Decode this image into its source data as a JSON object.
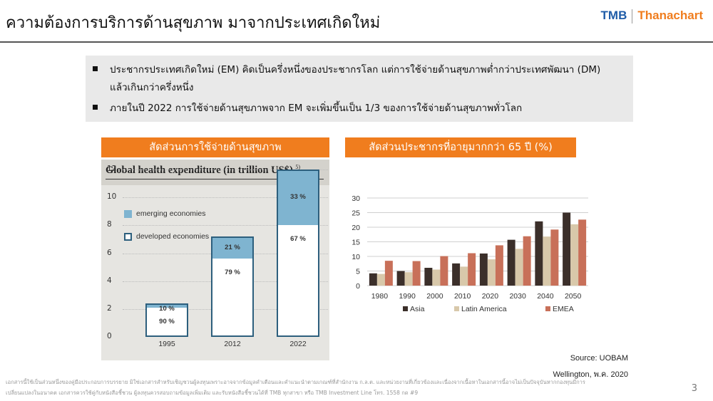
{
  "header": {
    "title": "ความต้องการบริการด้านสุขภาพ มาจากประเทศเกิดใหม่",
    "logo_tmb": "TMB",
    "logo_thanachart": "Thanachart"
  },
  "bullets": [
    {
      "line1": "ประชากรประเทศเกิดใหม่ (EM) คิดเป็นครึ่งหนึ่งของประชากรโลก แต่การใช้จ่ายด้านสุขภาพต่ำกว่าประเทศพัฒนา (DM)",
      "line2": "แล้วเกินกว่าครึ่งหนึ่ง"
    },
    {
      "line1": "ภายในปี 2022 การใช้จ่ายด้านสุขภาพจาก EM จะเพิ่มขึ้นเป็น 1/3 ของการใช้จ่ายด้านสุขภาพทั่วโลก"
    }
  ],
  "panel_left": {
    "bar_title": "สัดส่วนการใช้จ่ายด้านสุขภาพ",
    "chart_title": "Global health expenditure (in trillion US$)",
    "footnote": "5)"
  },
  "panel_right": {
    "bar_title": "สัดส่วนประชากรที่อายุมากกว่า 65 ปี (%)"
  },
  "chart_data": [
    {
      "type": "bar",
      "title": "Global health expenditure (in trillion US$)",
      "categories": [
        "1995",
        "2012",
        "2022"
      ],
      "totals": [
        2.4,
        7.2,
        12.0
      ],
      "series": [
        {
          "name": "developed economies",
          "shares": [
            "90 %",
            "79 %",
            "67 %"
          ],
          "color": "#ffffff"
        },
        {
          "name": "emerging economies",
          "shares": [
            "10 %",
            "21 %",
            "33 %"
          ],
          "color": "#7fb4d0"
        }
      ],
      "yticks": [
        "0",
        "2",
        "4",
        "6",
        "8",
        "10",
        "12"
      ],
      "ylim": [
        0,
        12
      ],
      "legend": [
        "emerging economies",
        "developed economies"
      ]
    },
    {
      "type": "bar",
      "title": "สัดส่วนประชากรที่อายุมากกว่า 65 ปี (%)",
      "categories": [
        "1980",
        "1990",
        "2000",
        "2010",
        "2020",
        "2030",
        "2040",
        "2050"
      ],
      "series": [
        {
          "name": "Asia",
          "values": [
            4.2,
            5.0,
            6.1,
            7.6,
            11.0,
            15.7,
            22.0,
            25.0
          ],
          "color": "#3b2f2a"
        },
        {
          "name": "Latin America",
          "values": [
            4.0,
            4.6,
            5.5,
            6.5,
            9.0,
            12.6,
            16.8,
            21.0
          ],
          "color": "#d8c8aa"
        },
        {
          "name": "EMEA",
          "values": [
            8.5,
            8.4,
            10.1,
            11.1,
            13.8,
            16.9,
            19.2,
            22.6
          ],
          "color": "#c87059"
        }
      ],
      "yticks": [
        "0",
        "5",
        "10",
        "15",
        "20",
        "25",
        "30"
      ],
      "ylim": [
        0,
        30
      ],
      "legend": [
        "Asia",
        "Latin America",
        "EMEA"
      ]
    }
  ],
  "source": {
    "line1": "Source: UOBAM",
    "line2": "Wellington, พ.ค. 2020"
  },
  "disclaimer": {
    "line1": "เอกสารนี้ใช้เป็นส่วนหนึ่งของคู่มือประกอบการบรรยาย มิใช่เอกสารสำหรับเชิญชวนผู้ลงทุนเพราะอาจจากข้อมูลคำเตือนและคำแนะนำตามเกณฑ์ที่สำนักงาน ก.ล.ต. และหน่วยงานที่เกี่ยวข้องและเนื่องจากเนื้อหาในเอกสารนี้อาจไม่เป็นปัจจุบันหากกองทุนมีการ",
    "line2": "เปลี่ยนแปลงในอนาคต เอกสารควรใช้คู่กับหนังสือชี้ชวน ผู้ลงทุนควรสอบถามข้อมูลเพิ่มเติม และรับหนังสือชี้ชวนได้ที่ TMB ทุกสาขา หรือ TMB Investment Line โทร. 1558 กด #9"
  },
  "page_number": "3"
}
